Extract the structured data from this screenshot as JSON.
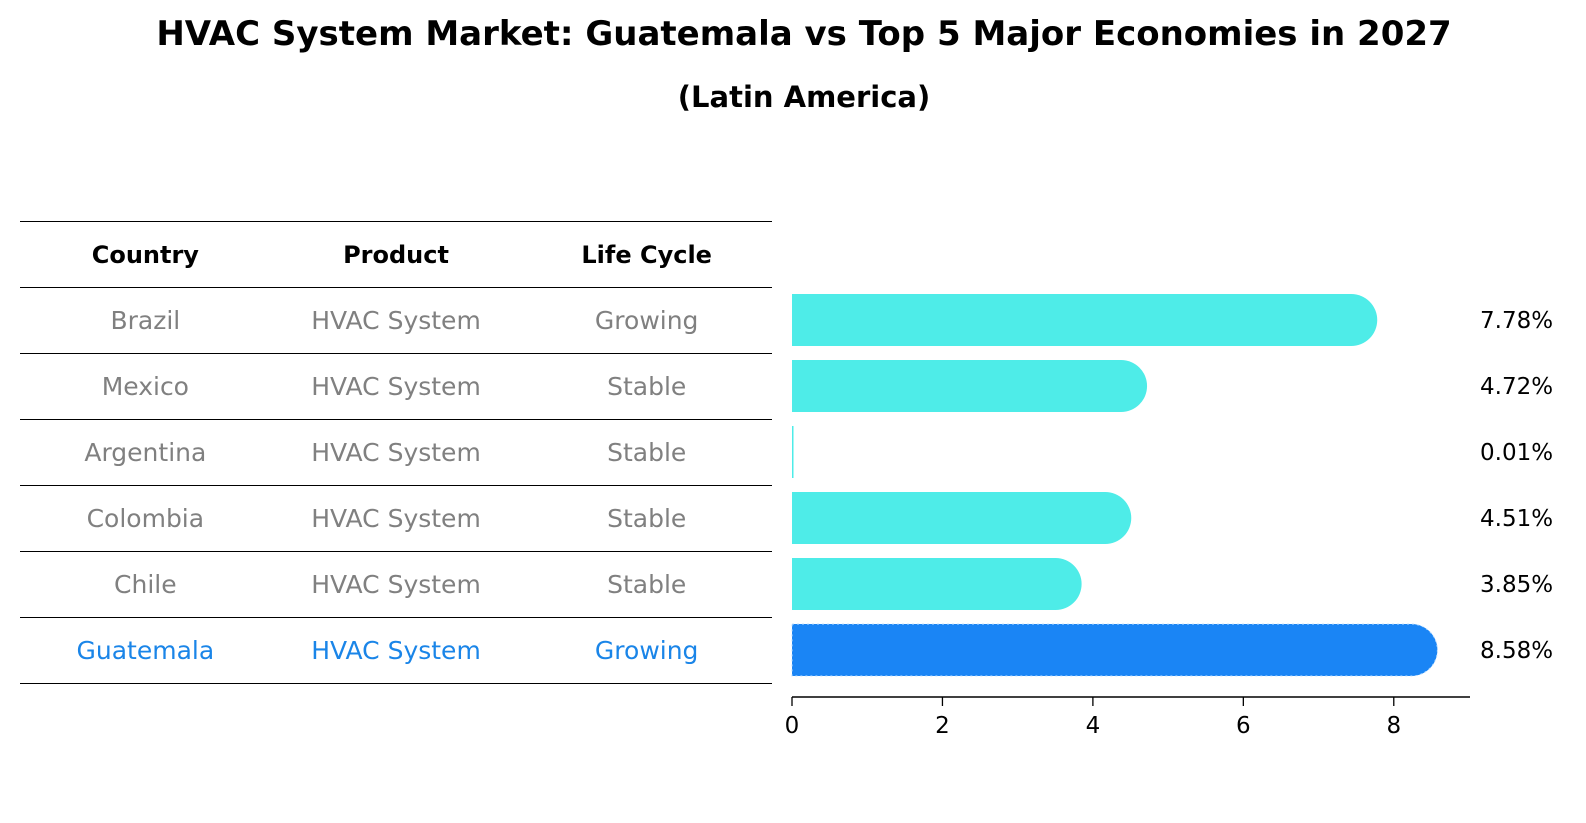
{
  "title": "HVAC System Market: Guatemala vs Top 5 Major Economies in 2027",
  "subtitle": "(Latin America)",
  "table": {
    "headers": [
      "Country",
      "Product",
      "Life Cycle"
    ],
    "rows": [
      {
        "country": "Brazil",
        "product": "HVAC System",
        "life_cycle": "Growing"
      },
      {
        "country": "Mexico",
        "product": "HVAC System",
        "life_cycle": "Stable"
      },
      {
        "country": "Argentina",
        "product": "HVAC System",
        "life_cycle": "Stable"
      },
      {
        "country": "Colombia",
        "product": "HVAC System",
        "life_cycle": "Stable"
      },
      {
        "country": "Chile",
        "product": "HVAC System",
        "life_cycle": "Stable"
      },
      {
        "country": "Guatemala",
        "product": "HVAC System",
        "life_cycle": "Growing"
      }
    ]
  },
  "colors": {
    "bar": "#4eece8",
    "highlight": "#1a85f5",
    "highlight_text": "#1a85e8",
    "muted_text": "#808080"
  },
  "chart_data": {
    "type": "bar",
    "orientation": "horizontal",
    "categories": [
      "Brazil",
      "Mexico",
      "Argentina",
      "Colombia",
      "Chile",
      "Guatemala"
    ],
    "values": [
      7.78,
      4.72,
      0.01,
      4.51,
      3.85,
      8.58
    ],
    "value_labels": [
      "7.78%",
      "4.72%",
      "0.01%",
      "4.51%",
      "3.85%",
      "8.58%"
    ],
    "highlight_category": "Guatemala",
    "xlim": [
      0,
      9
    ],
    "xticks": [
      0,
      2,
      4,
      6,
      8
    ],
    "xlabel": "",
    "ylabel": ""
  }
}
